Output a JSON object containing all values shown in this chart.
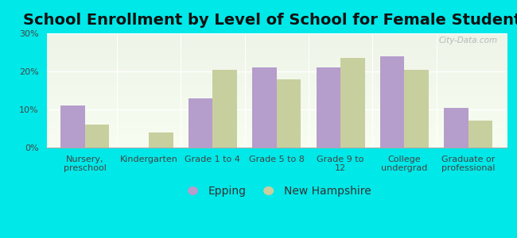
{
  "title": "School Enrollment by Level of School for Female Students",
  "categories": [
    "Nursery,\npreschool",
    "Kindergarten",
    "Grade 1 to 4",
    "Grade 5 to 8",
    "Grade 9 to\n12",
    "College\nundergrad",
    "Graduate or\nprofessional"
  ],
  "epping": [
    11,
    0,
    13,
    21,
    21,
    24,
    10.5
  ],
  "new_hampshire": [
    6,
    4,
    20.5,
    18,
    23.5,
    20.5,
    7
  ],
  "epping_color": "#b59dcc",
  "nh_color": "#c8cf9e",
  "background_color": "#00e8e8",
  "plot_bg_top": "#eef4e8",
  "plot_bg_bottom": "#f8fdf2",
  "ylim": [
    0,
    30
  ],
  "yticks": [
    0,
    10,
    20,
    30
  ],
  "ytick_labels": [
    "0%",
    "10%",
    "20%",
    "30%"
  ],
  "legend_epping": "Epping",
  "legend_nh": "New Hampshire",
  "title_fontsize": 14,
  "tick_fontsize": 8,
  "legend_fontsize": 10,
  "bar_width": 0.38
}
